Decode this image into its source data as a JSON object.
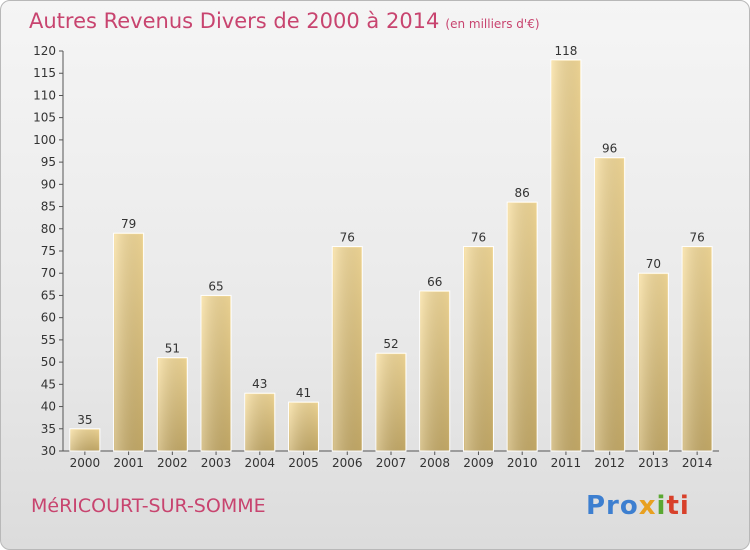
{
  "header": {
    "title": "Autres Revenus Divers de 2000 à 2014",
    "subtitle": "(en milliers d'€)"
  },
  "footer": {
    "place": "MéRICOURT-SUR-SOMME",
    "logo_parts": [
      "Pro",
      "x",
      "i",
      "ti"
    ]
  },
  "colors": {
    "title": "#c8446f",
    "bar_light": "#f6dc9a",
    "bar_dark": "#c9ae6a",
    "axis": "#555555"
  },
  "chart_data": {
    "type": "bar",
    "title": "Autres Revenus Divers de 2000 à 2014",
    "categories": [
      "2000",
      "2001",
      "2002",
      "2003",
      "2004",
      "2005",
      "2006",
      "2007",
      "2008",
      "2009",
      "2010",
      "2011",
      "2012",
      "2013",
      "2014"
    ],
    "values": [
      35,
      79,
      51,
      65,
      43,
      41,
      76,
      52,
      66,
      76,
      86,
      118,
      96,
      70,
      76
    ],
    "ylim": [
      30,
      120
    ],
    "yticks": [
      30,
      35,
      40,
      45,
      50,
      55,
      60,
      65,
      70,
      75,
      80,
      85,
      90,
      95,
      100,
      105,
      110,
      115,
      120
    ],
    "grid": false,
    "xlabel": "",
    "ylabel": ""
  }
}
